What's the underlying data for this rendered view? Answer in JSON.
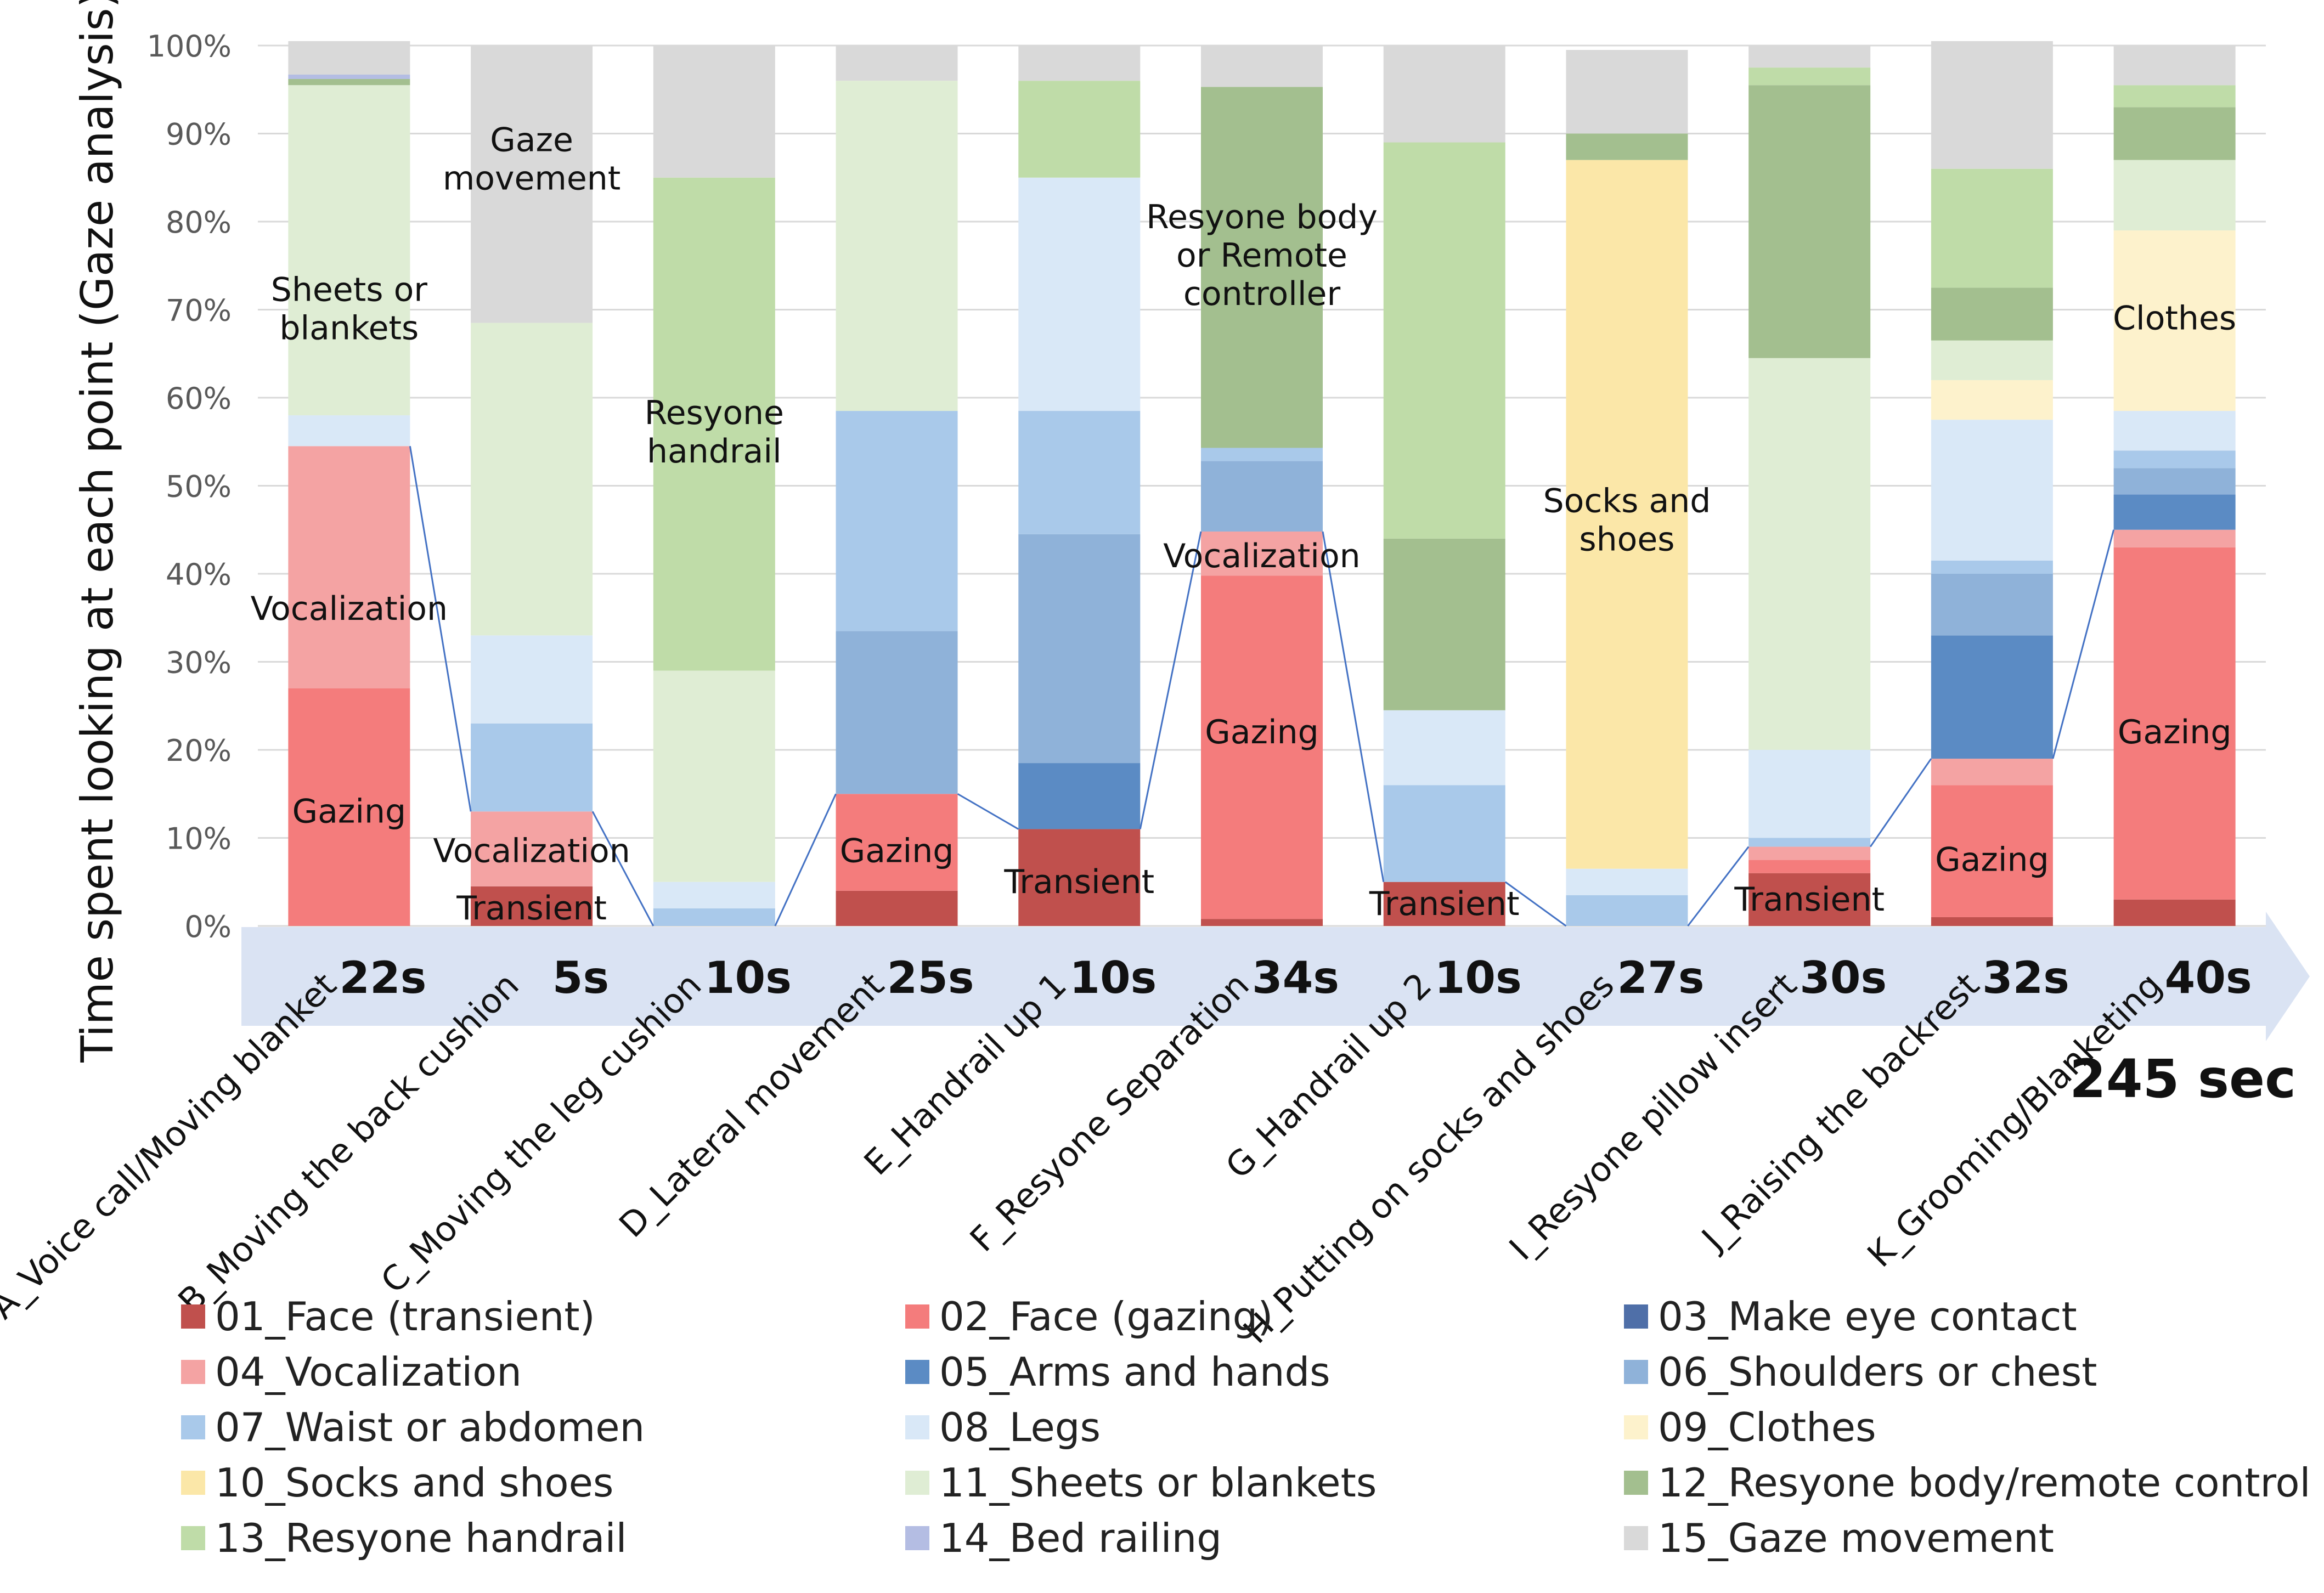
{
  "chart_data": {
    "type": "bar",
    "stacked": true,
    "ylabel": "Time spent looking at each point (Gaze analysis)",
    "ylim": [
      0,
      100
    ],
    "yticks": [
      "0%",
      "10%",
      "20%",
      "30%",
      "40%",
      "50%",
      "60%",
      "70%",
      "80%",
      "90%",
      "100%"
    ],
    "total_label": "245 sec",
    "categories": [
      "A_Voice call/Moving blanket",
      "B_Moving the back cushion",
      "C_Moving the leg cushion",
      "D_Lateral movement",
      "E_Handrail up 1",
      "F_Resyone Separation",
      "G_Handrail up 2",
      "H_Putting on socks and shoes",
      "I_Resyone pillow insert",
      "J_Raising the backrest",
      "K_Grooming/Blanketing"
    ],
    "durations": [
      "22s",
      "5s",
      "10s",
      "25s",
      "10s",
      "34s",
      "10s",
      "27s",
      "30s",
      "32s",
      "40s"
    ],
    "series": [
      {
        "name": "01_Face (transient)",
        "color": "#c0504d",
        "values": [
          0,
          4.5,
          0,
          4,
          11,
          0.8,
          5,
          0,
          6,
          1,
          3
        ]
      },
      {
        "name": "02_Face (gazing)",
        "color": "#f47c7c",
        "values": [
          27,
          0,
          0,
          11,
          0,
          39,
          0,
          0,
          1.5,
          15,
          40
        ]
      },
      {
        "name": "03_Make eye contact",
        "color": "#4f6fa8",
        "values": [
          0,
          0,
          0,
          0,
          0,
          0,
          0,
          0,
          0,
          0,
          0
        ]
      },
      {
        "name": "04_Vocalization",
        "color": "#f4a3a3",
        "values": [
          27.5,
          8.5,
          0,
          0,
          0,
          5,
          0,
          0,
          1.5,
          3,
          2
        ]
      },
      {
        "name": "05_Arms and hands",
        "color": "#5b8bc4",
        "values": [
          0,
          0,
          0,
          0,
          7.5,
          0,
          0,
          0,
          0,
          14,
          4
        ]
      },
      {
        "name": "06_Shoulders or chest",
        "color": "#8fb2d9",
        "values": [
          0,
          0,
          0,
          18.5,
          26,
          8,
          0,
          0,
          0,
          7,
          3
        ]
      },
      {
        "name": "07_Waist or abdomen",
        "color": "#a9c9ea",
        "values": [
          0,
          10,
          2,
          25,
          14,
          1.5,
          11,
          3.5,
          1,
          1.5,
          2
        ]
      },
      {
        "name": "08_Legs",
        "color": "#d9e8f7",
        "values": [
          3.5,
          10,
          3,
          0,
          26.5,
          0,
          8.5,
          3,
          10,
          16,
          4.5
        ]
      },
      {
        "name": "09_Clothes",
        "color": "#fdf2cc",
        "values": [
          0,
          0,
          0,
          0,
          0,
          0,
          0,
          0,
          0,
          4.5,
          20.5
        ]
      },
      {
        "name": "10_Socks and shoes",
        "color": "#fbe7a8",
        "values": [
          0,
          0,
          0,
          0,
          0,
          0,
          0,
          80.5,
          0,
          0,
          0
        ]
      },
      {
        "name": "11_Sheets or blankets",
        "color": "#dfedd4",
        "values": [
          37.5,
          35.5,
          24,
          37.5,
          0,
          0,
          0,
          0,
          44.5,
          4.5,
          8
        ]
      },
      {
        "name": "12_Resyone body/remote control",
        "color": "#a3bf8f",
        "values": [
          0.7,
          0,
          0,
          0,
          0,
          41,
          19.5,
          3,
          31,
          6,
          6
        ]
      },
      {
        "name": "13_Resyone handrail",
        "color": "#bfdca8",
        "values": [
          0,
          0,
          56,
          0,
          11,
          0,
          45,
          0,
          2,
          13.5,
          2.5
        ]
      },
      {
        "name": "14_Bed railing",
        "color": "#b4bde3",
        "values": [
          0.5,
          0,
          0,
          0,
          0,
          0,
          0,
          0,
          0,
          0,
          0
        ]
      },
      {
        "name": "15_Gaze movement",
        "color": "#d9d9d9",
        "values": [
          3.8,
          31.5,
          15,
          4,
          4,
          4.7,
          11,
          9.5,
          2.5,
          14.5,
          4.5
        ]
      }
    ],
    "annotations": [
      {
        "text": "Sheets or blankets",
        "bar": 0,
        "y": 70
      },
      {
        "text": "Vocalization",
        "bar": 0,
        "y": 36
      },
      {
        "text": "Gazing",
        "bar": 0,
        "y": 13
      },
      {
        "text": "Gaze movement",
        "bar": 1,
        "y": 87
      },
      {
        "text": "Vocalization",
        "bar": 1,
        "y": 8.5
      },
      {
        "text": "Transient",
        "bar": 1,
        "y": 2
      },
      {
        "text": "Resyone handrail",
        "bar": 2,
        "y": 56
      },
      {
        "text": "Gazing",
        "bar": 3,
        "y": 8.5
      },
      {
        "text": "Transient",
        "bar": 4,
        "y": 5
      },
      {
        "text": "Resyone body or Remote controller",
        "bar": 5,
        "y": 76
      },
      {
        "text": "Vocalization",
        "bar": 5,
        "y": 42
      },
      {
        "text": "Gazing",
        "bar": 5,
        "y": 22
      },
      {
        "text": "Transient",
        "bar": 6,
        "y": 2.5
      },
      {
        "text": "Socks and shoes",
        "bar": 7,
        "y": 46
      },
      {
        "text": "Transient",
        "bar": 8,
        "y": 3
      },
      {
        "text": "Gazing",
        "bar": 9,
        "y": 7.5
      },
      {
        "text": "Clothes",
        "bar": 10,
        "y": 69
      },
      {
        "text": "Gazing",
        "bar": 10,
        "y": 22
      }
    ]
  }
}
